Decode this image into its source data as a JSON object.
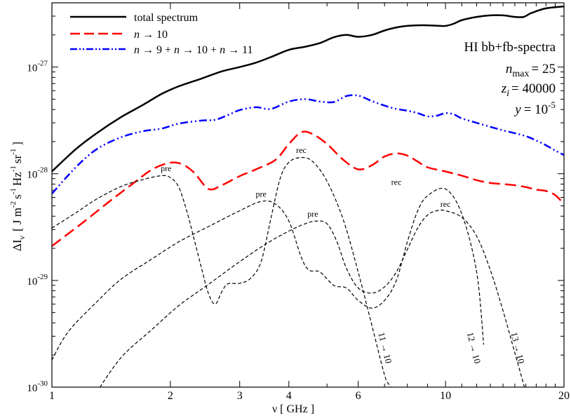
{
  "chart_data": {
    "type": "line",
    "xscale": "log",
    "yscale": "log",
    "xlim": [
      1,
      20
    ],
    "ylim": [
      1e-30,
      4e-27
    ],
    "xlabel": "ν [ GHz ]",
    "ylabel": {
      "main": "ΔI",
      "main_sub": "ν",
      "bracket_open": "[ J m",
      "e1": "-2",
      "s": "s",
      "e2": "-1",
      "hz": "Hz",
      "e3": "-1",
      "sr": "sr",
      "e4": "-1",
      "bracket_close": "]"
    },
    "x_ticks": [
      {
        "value": 1,
        "label": "1"
      },
      {
        "value": 2,
        "label": "2"
      },
      {
        "value": 3,
        "label": "3"
      },
      {
        "value": 4,
        "label": "4"
      },
      {
        "value": 6,
        "label": "6"
      },
      {
        "value": 10,
        "label": "10"
      },
      {
        "value": 20,
        "label": "20"
      }
    ],
    "y_ticks": [
      {
        "value": 1e-30,
        "base": "10",
        "exp": "-30"
      },
      {
        "value": 1e-29,
        "base": "10",
        "exp": "-29"
      },
      {
        "value": 1e-28,
        "base": "10",
        "exp": "-28"
      },
      {
        "value": 1e-27,
        "base": "10",
        "exp": "-27"
      }
    ],
    "info_box": {
      "title": "HI bb+fb-spectra",
      "nmax": {
        "var": "n",
        "sub": "max",
        "value": "= 25"
      },
      "zi": {
        "var": "z",
        "sub": "i",
        "value": "= 40000"
      },
      "y": {
        "var": "y",
        "eq": "= 10",
        "exp": "-5"
      }
    },
    "legend": {
      "position": "top-left",
      "entries": [
        {
          "series": "total",
          "parts": [
            {
              "t": "total spectrum",
              "i": false
            }
          ]
        },
        {
          "series": "n10",
          "parts": [
            {
              "t": "n",
              "i": true
            },
            {
              "t": " → 10",
              "i": false
            }
          ]
        },
        {
          "series": "n91011",
          "parts": [
            {
              "t": "n",
              "i": true
            },
            {
              "t": " → 9 + ",
              "i": false
            },
            {
              "t": "n",
              "i": true
            },
            {
              "t": " → 10 + ",
              "i": false
            },
            {
              "t": "n",
              "i": true
            },
            {
              "t": " → 11",
              "i": false
            }
          ]
        }
      ]
    },
    "series": [
      {
        "id": "total",
        "name": "total spectrum",
        "color": "#000000",
        "style": "solid",
        "width": 2.5,
        "x": [
          1,
          1.15,
          1.3,
          1.5,
          1.7,
          1.9,
          2.1,
          2.4,
          2.7,
          3.0,
          3.3,
          3.6,
          4.0,
          4.4,
          4.8,
          5.2,
          5.6,
          6.0,
          6.5,
          7.0,
          7.5,
          8.0,
          8.5,
          9.0,
          9.5,
          10.0,
          10.5,
          11.0,
          12.0,
          13.0,
          14.0,
          15.0,
          15.8,
          16.5,
          18.0,
          20.0
        ],
        "y": [
          1.05e-28,
          1.7e-28,
          2.4e-28,
          3.4e-28,
          4.4e-28,
          5.6e-28,
          6.6e-28,
          7.8e-28,
          9.1e-28,
          1e-27,
          1.1e-27,
          1.24e-27,
          1.45e-27,
          1.55e-27,
          1.68e-27,
          1.9e-27,
          2e-27,
          1.92e-27,
          2e-27,
          2.2e-27,
          2.35e-27,
          2.43e-27,
          2.46e-27,
          2.46e-27,
          2.44e-27,
          2.43e-27,
          2.55e-27,
          2.75e-27,
          2.95e-27,
          3.05e-27,
          3.05e-27,
          2.95e-27,
          2.95e-27,
          3.2e-27,
          3.55e-27,
          3.7e-27
        ]
      },
      {
        "id": "n10",
        "name": "n → 10",
        "color": "#ff0000",
        "style": "dashed",
        "width": 2.5,
        "x": [
          1,
          1.2,
          1.4,
          1.6,
          1.8,
          2.0,
          2.15,
          2.3,
          2.5,
          2.7,
          3.0,
          3.3,
          3.7,
          4.0,
          4.3,
          4.6,
          5.0,
          5.5,
          6.0,
          6.5,
          7.0,
          7.5,
          8.0,
          8.5,
          9.0,
          10.0,
          11.0,
          12.0,
          13.0,
          14.0,
          15.0,
          16.0,
          17.0,
          18.0,
          19.0,
          20.0
        ],
        "y": [
          2.1e-29,
          3.5e-29,
          5.5e-29,
          8e-29,
          1.1e-28,
          1.27e-28,
          1.22e-28,
          1.02e-28,
          7.2e-29,
          7.8e-29,
          9.5e-29,
          1.1e-28,
          1.35e-28,
          1.9e-28,
          2.45e-28,
          2.35e-28,
          1.9e-28,
          1.35e-28,
          1.1e-28,
          1.2e-28,
          1.45e-28,
          1.55e-28,
          1.48e-28,
          1.3e-28,
          1.15e-28,
          1.05e-28,
          9.6e-29,
          8.7e-29,
          8.2e-29,
          8e-29,
          7.8e-29,
          7.5e-29,
          7.1e-29,
          6.9e-29,
          6.3e-29,
          5.2e-29
        ]
      },
      {
        "id": "n91011",
        "name": "n → 9 + n → 10 + n → 11",
        "color": "#0000ff",
        "style": "dashdot",
        "width": 2.5,
        "x": [
          1,
          1.15,
          1.3,
          1.5,
          1.7,
          1.9,
          2.1,
          2.4,
          2.6,
          2.8,
          3.0,
          3.3,
          3.6,
          4.0,
          4.4,
          4.8,
          5.2,
          5.6,
          6.0,
          6.5,
          7.0,
          7.5,
          8.0,
          8.5,
          9.0,
          9.5,
          10.0,
          10.5,
          11.0,
          12.0,
          13.0,
          14.0,
          15.0,
          16.0,
          17.0,
          18.0,
          19.0,
          20.0
        ],
        "y": [
          6.5e-29,
          1.15e-28,
          1.7e-28,
          2.2e-28,
          2.5e-28,
          2.65e-28,
          2.95e-28,
          3.15e-28,
          3.2e-28,
          3.55e-28,
          3.95e-28,
          4.2e-28,
          4.05e-28,
          4.75e-28,
          5e-28,
          4.75e-28,
          4.7e-28,
          5.35e-28,
          5.4e-28,
          4.8e-28,
          4.35e-28,
          4.05e-28,
          3.9e-28,
          3.7e-28,
          3.45e-28,
          3.5e-28,
          3.7e-28,
          3.6e-28,
          3.3e-28,
          3e-28,
          2.75e-28,
          2.55e-28,
          2.4e-28,
          2.25e-28,
          2.05e-28,
          1.85e-28,
          1.65e-28,
          1.5e-28
        ]
      },
      {
        "id": "t11",
        "name": "11 → 10",
        "color": "#000000",
        "style": "thin-dashed",
        "width": 1.2,
        "x": [
          1,
          1.15,
          1.3,
          1.5,
          1.7,
          1.9,
          2.0,
          2.1,
          2.2,
          2.3,
          2.4,
          2.5,
          2.6,
          2.7,
          2.8,
          3.0,
          3.2,
          3.4,
          3.6,
          3.8,
          4.0,
          4.3,
          4.6,
          5.0,
          5.5,
          6.0,
          6.5,
          7.0,
          7.2,
          7.4
        ],
        "y": [
          3.1e-29,
          4.3e-29,
          5.8e-29,
          7.6e-29,
          8.8e-29,
          9.6e-29,
          9.2e-29,
          7.5e-29,
          4.5e-29,
          2.4e-29,
          1.3e-29,
          7.5e-30,
          6e-30,
          7.8e-30,
          9.3e-30,
          9.4e-30,
          1.05e-29,
          1.5e-29,
          3.8e-29,
          9e-29,
          1.28e-28,
          1.42e-28,
          1.3e-28,
          8.5e-29,
          3.7e-29,
          1.2e-29,
          3.8e-30,
          1.3e-30,
          1.05e-30,
          9e-31
        ]
      },
      {
        "id": "t12",
        "name": "12 → 10",
        "color": "#000000",
        "style": "thin-dashed",
        "width": 1.2,
        "x": [
          1,
          1.1,
          1.3,
          1.5,
          1.8,
          2.1,
          2.5,
          3.0,
          3.4,
          3.7,
          4.0,
          4.3,
          4.5,
          4.8,
          5.2,
          5.6,
          6.0,
          6.5,
          7.0,
          7.5,
          8.0,
          8.5,
          9.0,
          10.0,
          11.0,
          12.0,
          12.5
        ],
        "y": [
          1.8e-30,
          3.3e-30,
          6.3e-30,
          1.03e-29,
          1.6e-29,
          2.3e-29,
          3.2e-29,
          4.5e-29,
          5.5e-29,
          5.2e-29,
          3.6e-29,
          1.65e-29,
          1.25e-29,
          1.2e-29,
          9e-30,
          8.5e-30,
          6.5e-30,
          5.5e-30,
          6.5e-30,
          1e-29,
          2.3e-29,
          4.5e-29,
          6.2e-29,
          7.2e-29,
          4.2e-29,
          1.2e-29,
          2.5e-30
        ]
      },
      {
        "id": "t13",
        "name": "13 → 10",
        "color": "#000000",
        "style": "thin-dashed",
        "width": 1.2,
        "x": [
          1.3,
          1.5,
          1.8,
          2.1,
          2.5,
          3.0,
          3.5,
          4.0,
          4.4,
          4.7,
          5.0,
          5.3,
          5.6,
          6.0,
          6.5,
          7.0,
          7.5,
          8.0,
          8.5,
          9.0,
          9.5,
          10.0,
          11.0,
          12.0,
          13.0,
          14.0,
          15.0,
          16.0
        ],
        "y": [
          9e-31,
          1.9e-30,
          3.5e-30,
          5.8e-30,
          9.2e-30,
          1.5e-29,
          2.2e-29,
          2.9e-29,
          3.4e-29,
          3.6e-29,
          3.4e-29,
          2.3e-29,
          1.3e-29,
          8.5e-30,
          7.6e-30,
          8.7e-30,
          1.2e-29,
          1.95e-29,
          3.1e-29,
          4.1e-29,
          4.5e-29,
          4.5e-29,
          3.9e-29,
          2.6e-29,
          1.25e-29,
          5.2e-30,
          2.1e-30,
          9e-31
        ]
      }
    ],
    "annotations": [
      {
        "text": "pre",
        "x": 1.95,
        "y": 1.06e-28
      },
      {
        "text": "pre",
        "x": 3.4,
        "y": 6.1e-29
      },
      {
        "text": "pre",
        "x": 4.6,
        "y": 3.95e-29
      },
      {
        "text": "rec",
        "x": 4.3,
        "y": 1.57e-28
      },
      {
        "text": "rec",
        "x": 7.5,
        "y": 7.9e-29
      },
      {
        "text": "rec",
        "x": 10.0,
        "y": 4.9e-29
      }
    ],
    "curve_labels": [
      {
        "text": "11 → 10",
        "x": 6.9,
        "y": 2.3e-30
      },
      {
        "text": "12 → 10",
        "x": 11.6,
        "y": 2.3e-30
      },
      {
        "text": "13 → 10",
        "x": 15.0,
        "y": 2.3e-30
      }
    ]
  }
}
